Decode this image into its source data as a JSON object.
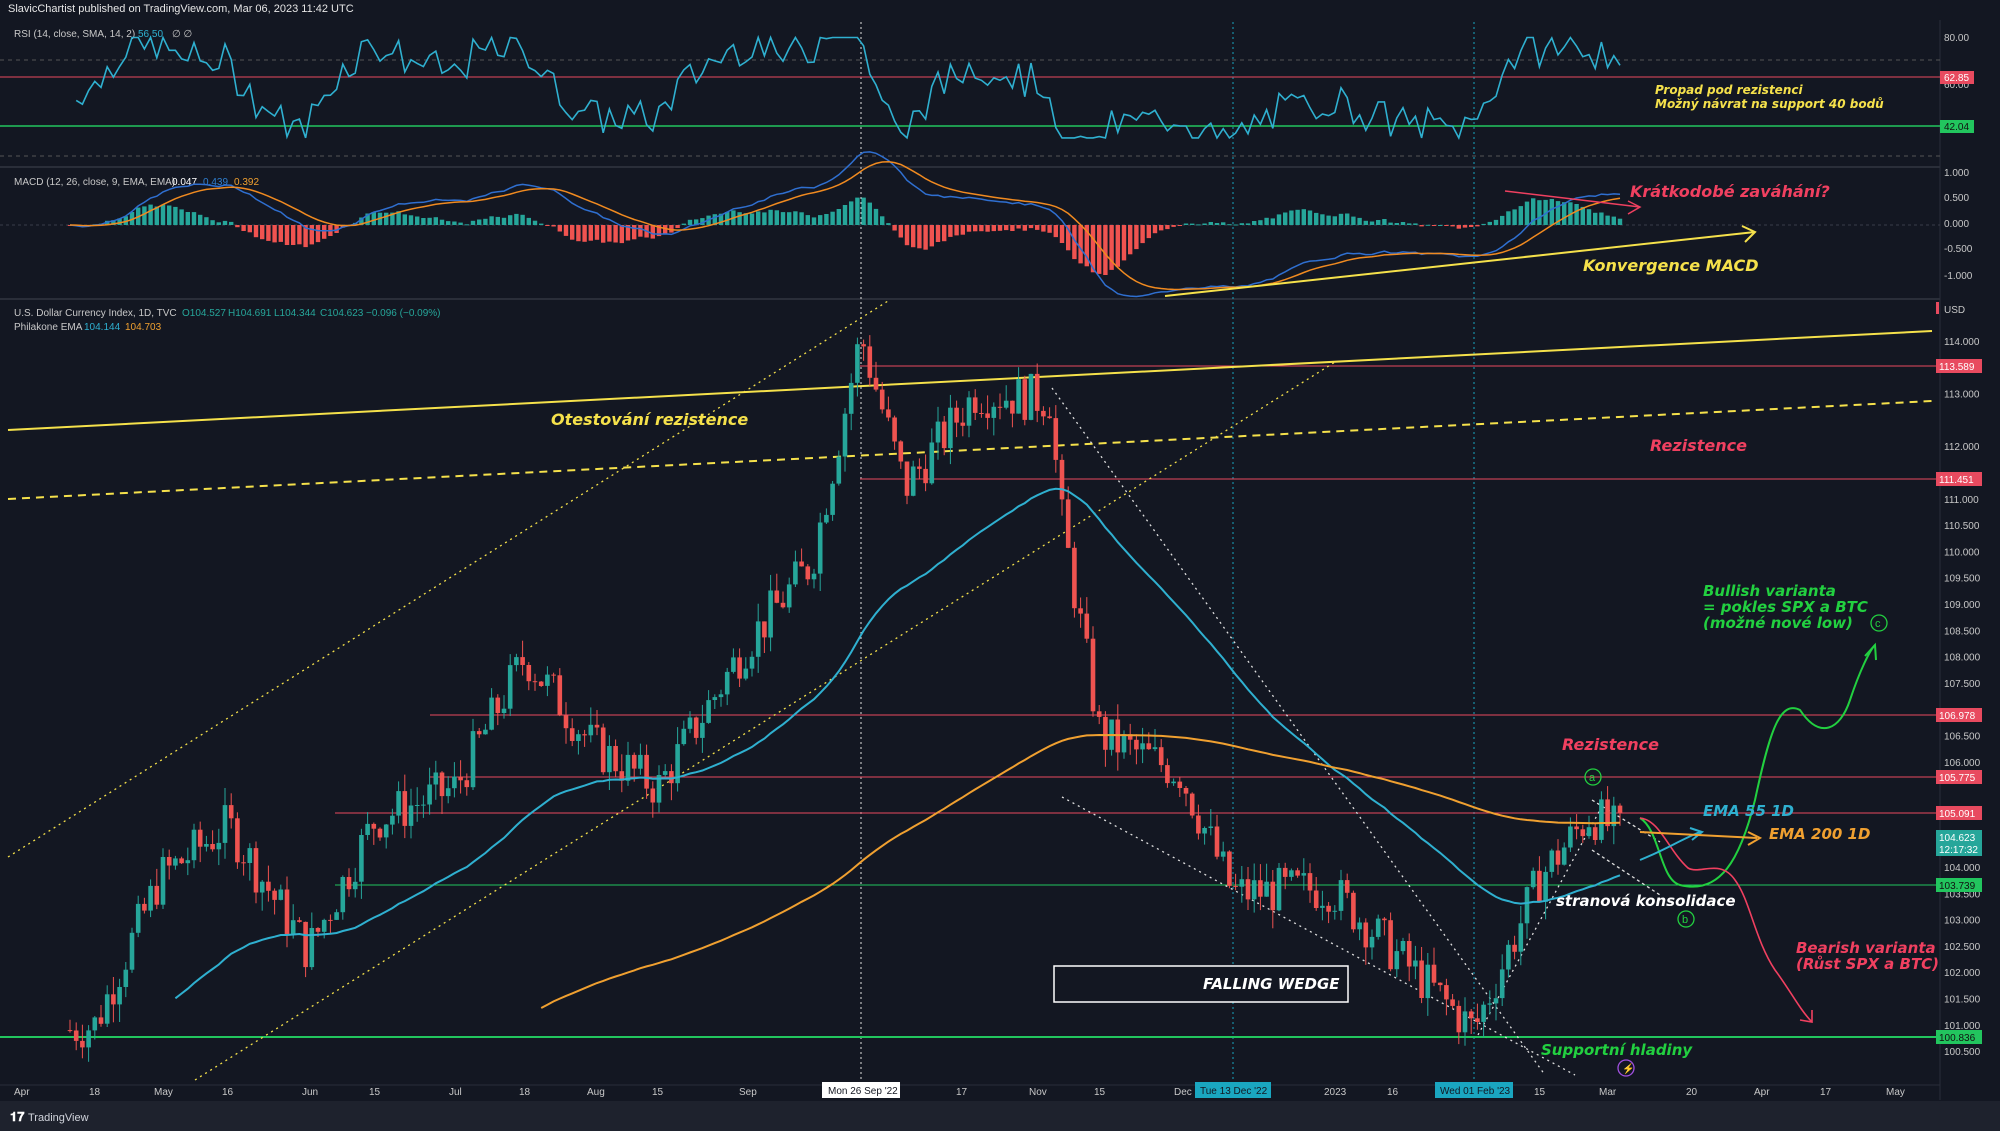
{
  "header": "SlavicChartist published on TradingView.com, Mar 06, 2023 11:42 UTC",
  "footer_logo": "TradingView",
  "colors": {
    "bg": "#131722",
    "up": "#26a69a",
    "down": "#ef5350",
    "red_line": "#e84a5f",
    "green_line": "#22c55e",
    "yellow": "#f5e14b",
    "ema55": "#2fb0d0",
    "ema200": "#f0a030",
    "annot_red": "#f04060",
    "annot_green": "#22d040",
    "annot_blue": "#2fb0d0",
    "annot_orange": "#f0a030",
    "badge": "#1aa6c0"
  },
  "rsi": {
    "legend": "RSI (14, close, SMA, 14, 2)",
    "legend_val": "56.50",
    "legend_sym": "∅ ∅",
    "scale": [
      "80.00",
      "60.00"
    ],
    "tag_resist": "62.85",
    "tag_support": "42.04",
    "note1": "Propad pod rezistenci",
    "note2": "Možný návrat na support 40 bodů"
  },
  "macd": {
    "legend": "MACD (12, 26, close, 9, EMA, EMA)",
    "v1": "0.047",
    "v2": "0.439",
    "v3": "0.392",
    "scale": [
      "1.000",
      "0.500",
      "0.000",
      "-0.500",
      "-1.000"
    ],
    "note_short": "Krátkodobé zaváhání?",
    "note_conv": "Konvergence MACD"
  },
  "main": {
    "legend1": "U.S. Dollar Currency Index, 1D, TVC",
    "o": "O104.527",
    "h": "H104.691",
    "l": "L104.344",
    "c": "C104.623",
    "chg": "−0.096 (−0.09%)",
    "legend2": "Philakone EMA",
    "ema_a": "104.144",
    "ema_b": "104.703",
    "currency": "USD",
    "scale": [
      "114.000",
      "113.000",
      "112.000",
      "111.000",
      "110.500",
      "110.000",
      "109.500",
      "109.000",
      "108.500",
      "108.000",
      "107.500",
      "106.500",
      "106.000",
      "104.000",
      "103.500",
      "103.000",
      "102.500",
      "102.000",
      "101.500",
      "101.000",
      "100.500"
    ],
    "tags": {
      "t113": "113.589",
      "t111": "111.451",
      "t106": "106.978",
      "t105a": "105.775",
      "t105b": "105.091",
      "tlast": "104.623",
      "tcount": "12:17:32",
      "t103": "103.739",
      "t100": "100.836"
    },
    "labels": {
      "otest": "Otestování rezistence",
      "rez1": "Rezistence",
      "rez2": "Rezistence",
      "bull1": "Bullish varianta",
      "bull2": "= pokles SPX a BTC",
      "bull3": "(možné nové low)",
      "ema55": "EMA 55 1D",
      "ema200": "EMA 200 1D",
      "stran": "stranová konsolidace",
      "bear1": "Bearish varianta",
      "bear2": "(Růst SPX a BTC)",
      "wedge": "FALLING WEDGE",
      "supp": "Supportní hladiny",
      "ca": "a",
      "cb": "b",
      "cc": "c"
    }
  },
  "xaxis": {
    "labels": [
      "Apr",
      "18",
      "May",
      "16",
      "Jun",
      "15",
      "Jul",
      "18",
      "Aug",
      "15",
      "Sep",
      "17",
      "Nov",
      "15",
      "Dec",
      "2023",
      "16",
      "15",
      "Mar",
      "20",
      "Apr",
      "17",
      "May"
    ],
    "badges": [
      "Mon 26 Sep '22",
      "Tue 13 Dec '22",
      "Wed 01 Feb '23"
    ]
  },
  "chart_data": {
    "type": "candlestick",
    "title": "U.S. Dollar Currency Index, 1D, TVC",
    "ohlc_last": {
      "open": 104.527,
      "high": 104.691,
      "low": 104.344,
      "close": 104.623
    },
    "change": "−0.096 (−0.09%)",
    "ylim": [
      100.3,
      114.6
    ],
    "y_axis_labels": [
      114,
      113,
      112,
      111,
      110.5,
      110,
      109.5,
      109,
      108.5,
      108,
      107.5,
      106.5,
      106,
      104,
      103.5,
      103,
      102.5,
      102,
      101.5,
      101,
      100.5
    ],
    "horizontal_levels": [
      113.589,
      111.451,
      106.978,
      105.775,
      105.091,
      103.739,
      100.836
    ],
    "ema": {
      "EMA 55 1D": 104.144,
      "EMA 200 1D": 104.703
    },
    "price_path": [
      [
        "Apr",
        100.7
      ],
      [
        "Apr 18",
        101.0
      ],
      [
        "May",
        103.8
      ],
      [
        "May 16",
        104.8
      ],
      [
        "Jun",
        102.4
      ],
      [
        "Jun 15",
        104.9
      ],
      [
        "Jul",
        105.5
      ],
      [
        "Jul 18",
        108.0
      ],
      [
        "Aug",
        106.3
      ],
      [
        "Aug 15",
        105.5
      ],
      [
        "Sep",
        108.2
      ],
      [
        "Sep 17",
        109.8
      ],
      [
        "Sep 26",
        114.1
      ],
      [
        "Oct",
        111.2
      ],
      [
        "Oct 15",
        113.0
      ],
      [
        "Nov",
        112.9
      ],
      [
        "Nov 5",
        110.8
      ],
      [
        "Nov 15",
        106.5
      ],
      [
        "Dec",
        105.8
      ],
      [
        "Dec 13",
        103.5
      ],
      [
        "2023",
        103.6
      ],
      [
        "Jan 16",
        102.4
      ],
      [
        "Feb 1",
        100.9
      ],
      [
        "Feb 15",
        103.8
      ],
      [
        "Feb 28",
        105.0
      ],
      [
        "Mar 6",
        104.6
      ]
    ],
    "rsi": {
      "value": 56.5,
      "resistance": 62.85,
      "support": 42.04,
      "scale": [
        80,
        60
      ]
    },
    "macd": {
      "macd": 0.047,
      "signal": 0.439,
      "hist": 0.392,
      "scale": [
        1.0,
        0.5,
        0.0,
        -0.5,
        -1.0
      ]
    }
  }
}
